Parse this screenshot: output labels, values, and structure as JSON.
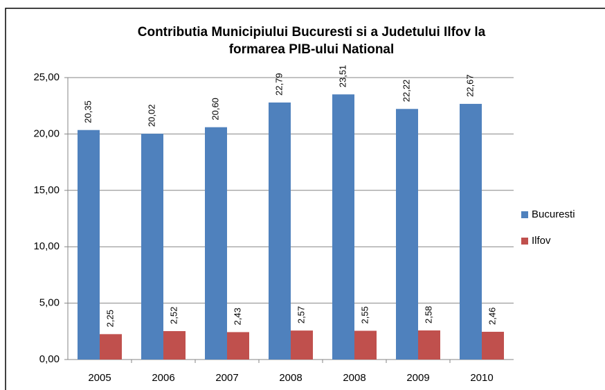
{
  "chart_data": {
    "type": "bar",
    "title": [
      "Contributia Municipiului Bucuresti si a Judetului Ilfov la",
      "formarea PIB-ului National"
    ],
    "categories": [
      "2005",
      "2006",
      "2007",
      "2008",
      "2008",
      "2009",
      "2010"
    ],
    "series": [
      {
        "name": "Bucuresti",
        "color": "#4f81bd",
        "values": [
          20.35,
          20.02,
          20.6,
          22.79,
          23.51,
          22.22,
          22.67
        ],
        "value_labels": [
          "20,35",
          "20,02",
          "20,60",
          "22,79",
          "23,51",
          "22,22",
          "22,67"
        ]
      },
      {
        "name": "Ilfov",
        "color": "#c0504d",
        "values": [
          2.25,
          2.52,
          2.43,
          2.57,
          2.55,
          2.58,
          2.46
        ],
        "value_labels": [
          "2,25",
          "2,52",
          "2,43",
          "2,57",
          "2,55",
          "2,58",
          "2,46"
        ]
      }
    ],
    "ylim": [
      0,
      25
    ],
    "yticks": [
      {
        "value": 0,
        "label": "0,00"
      },
      {
        "value": 5,
        "label": "5,00"
      },
      {
        "value": 10,
        "label": "10,00"
      },
      {
        "value": 15,
        "label": "15,00"
      },
      {
        "value": 20,
        "label": "20,00"
      },
      {
        "value": 25,
        "label": "25,00"
      }
    ],
    "grid": true,
    "legend": "right"
  }
}
